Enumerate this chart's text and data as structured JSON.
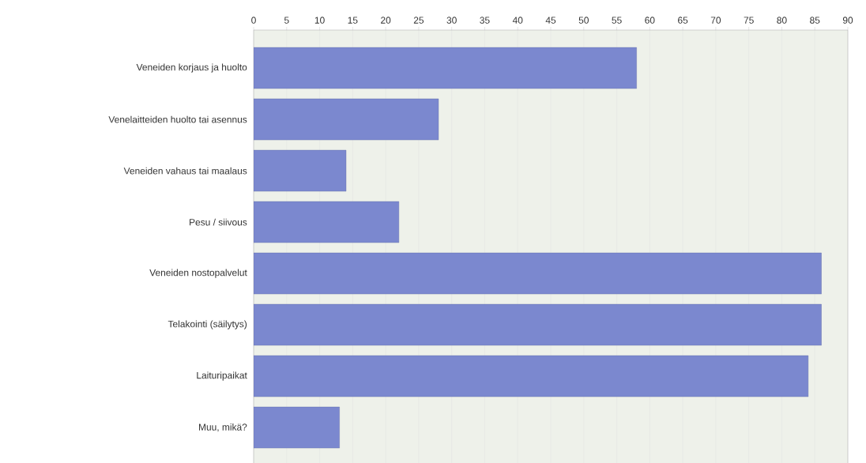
{
  "chart_data": {
    "type": "bar",
    "orientation": "horizontal",
    "categories": [
      "Veneiden korjaus ja huolto",
      "Venelaitteiden huolto tai asennus",
      "Veneiden vahaus tai maalaus",
      "Pesu / siivous",
      "Veneiden nostopalvelut",
      "Telakointi (säilytys)",
      "Laituripaikat",
      "Muu, mikä?"
    ],
    "values": [
      58,
      28,
      14,
      22,
      86,
      86,
      84,
      13
    ],
    "color": "#7b88cf",
    "xlim": [
      0,
      90
    ],
    "xticks": [
      0,
      5,
      10,
      15,
      20,
      25,
      30,
      35,
      40,
      45,
      50,
      55,
      60,
      65,
      70,
      75,
      80,
      85,
      90
    ],
    "grid": "x"
  }
}
